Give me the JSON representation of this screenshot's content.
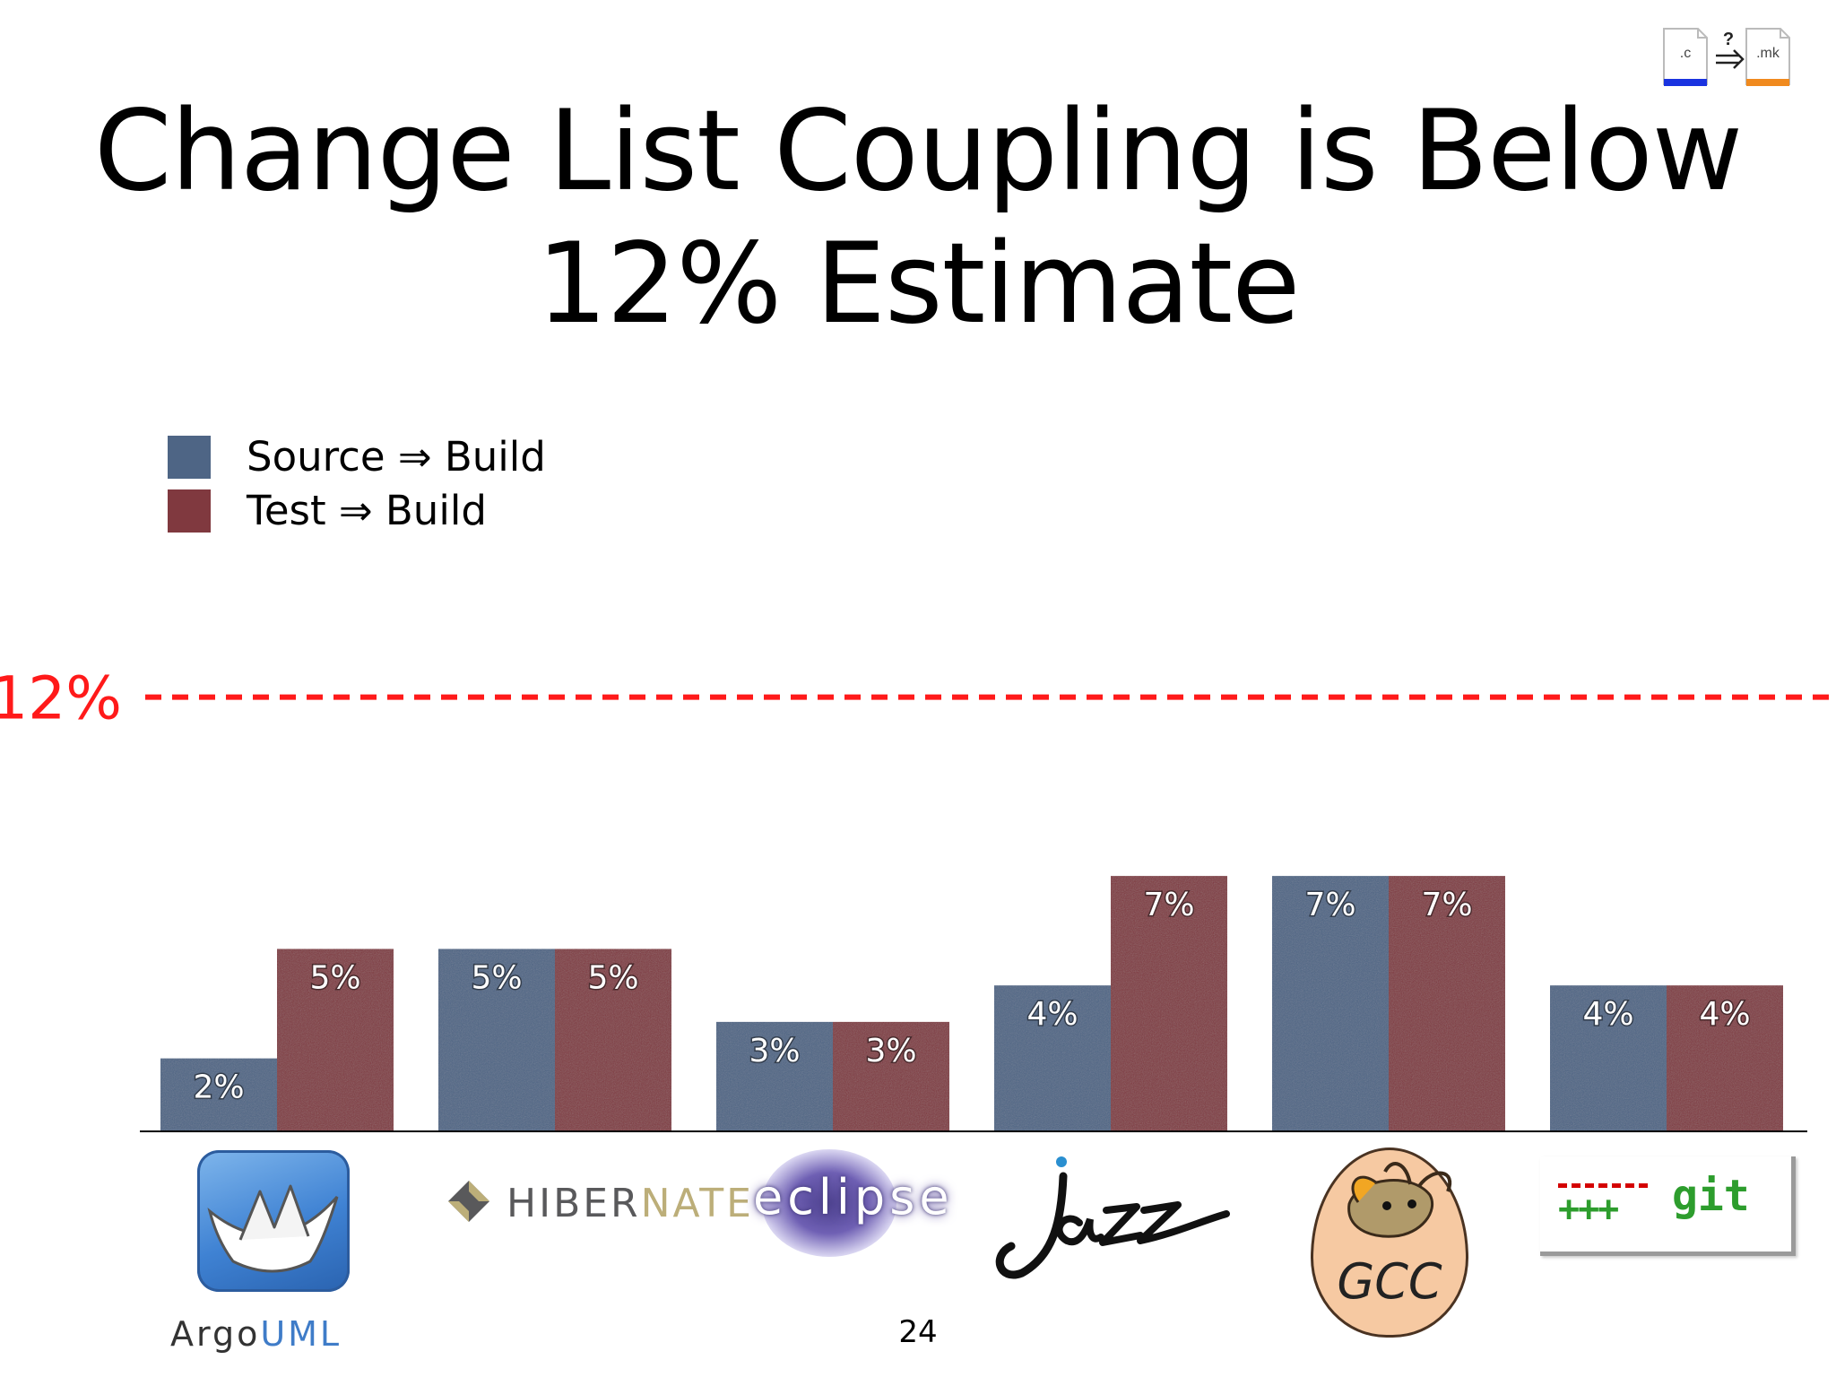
{
  "slide": {
    "title_line1": "Change List Coupling is Below",
    "title_line2": "12% Estimate",
    "page_number": "24",
    "corner_icon": {
      "left_file": ".c",
      "question": "?",
      "right_file": ".mk",
      "left_color": "#1a33e0",
      "right_color": "#f08a1e"
    }
  },
  "chart_data": {
    "type": "bar",
    "categories": [
      "ArgoUML",
      "Hibernate",
      "Eclipse",
      "Jazz",
      "GCC",
      "git"
    ],
    "series": [
      {
        "name": "Source ⇒ Build",
        "values": [
          2,
          5,
          3,
          4,
          7,
          4
        ],
        "labels": [
          "2%",
          "5%",
          "3%",
          "4%",
          "7%",
          "4%"
        ],
        "color": "#4e6585"
      },
      {
        "name": "Test ⇒ Build",
        "values": [
          5,
          5,
          3,
          7,
          7,
          4
        ],
        "labels": [
          "5%",
          "5%",
          "3%",
          "7%",
          "7%",
          "4%"
        ],
        "color": "#80393f"
      }
    ],
    "reference_line": {
      "value": 12,
      "label": "12%",
      "color": "#ff1a1a",
      "style": "dashed"
    },
    "ylim": [
      0,
      12
    ],
    "xlabel": "",
    "ylabel": "",
    "legend_position": "top-left",
    "grid": false
  },
  "logos": {
    "argouml": {
      "prefix": "Argo",
      "suffix": "UML"
    },
    "hibernate": {
      "prefix": "HIBER",
      "suffix": "NATE"
    },
    "eclipse": {
      "text": "eclipse"
    },
    "jazz": {
      "text": "Jazz"
    },
    "gcc": {
      "text": "GCC"
    },
    "git": {
      "text": "git",
      "plus": "+++",
      "minus": "---"
    }
  }
}
